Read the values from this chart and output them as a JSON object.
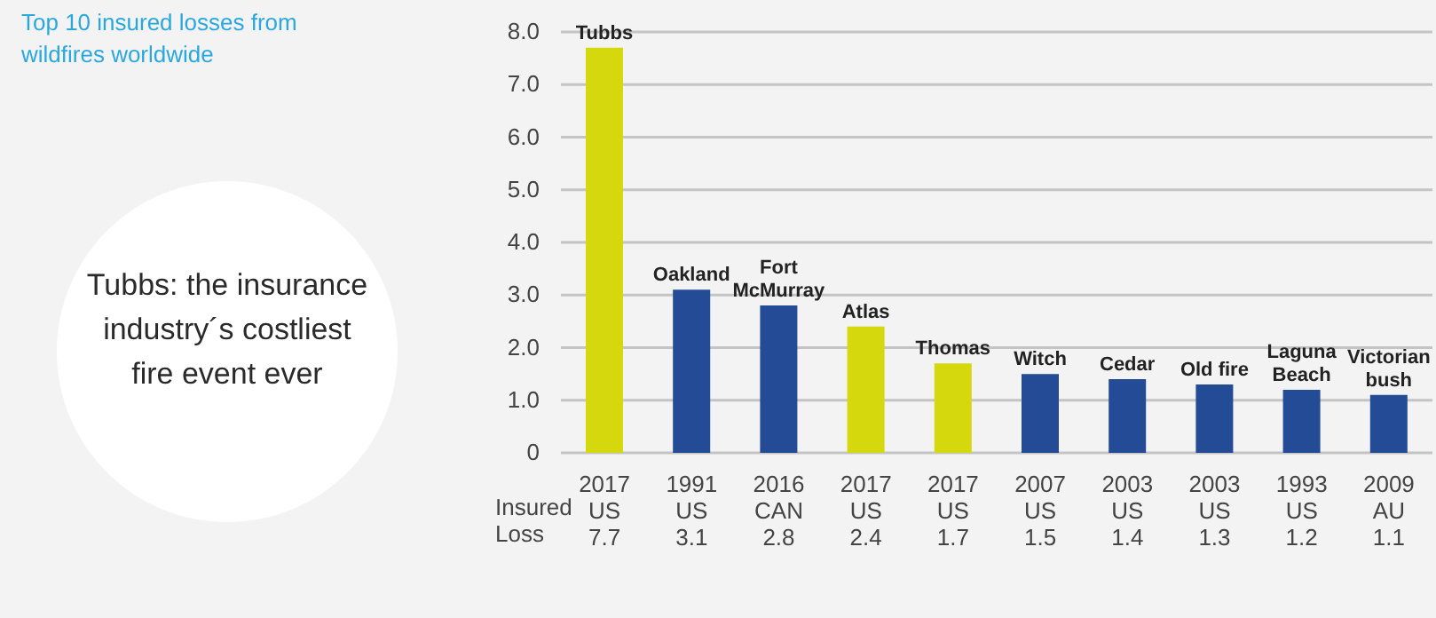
{
  "chart_data": {
    "type": "bar",
    "title": "Top 10 insured losses from wildfires worldwide",
    "categories": [
      "Tubbs",
      "Oakland",
      "Fort McMurray",
      "Atlas",
      "Thomas",
      "Witch",
      "Cedar",
      "Old fire",
      "Laguna Beach",
      "Victorian bush"
    ],
    "values": [
      7.7,
      3.1,
      2.8,
      2.4,
      1.7,
      1.5,
      1.4,
      1.3,
      1.2,
      1.1
    ],
    "colors": [
      "#d4d80c",
      "#234b96",
      "#234b96",
      "#d4d80c",
      "#d4d80c",
      "#234b96",
      "#234b96",
      "#234b96",
      "#234b96",
      "#234b96"
    ],
    "ylim": [
      0,
      8
    ],
    "yticks": [
      0,
      {
        "value": 1,
        "label": "1.0"
      },
      {
        "value": 2,
        "label": "2.0"
      },
      {
        "value": 3,
        "label": "3.0"
      },
      {
        "value": 4,
        "label": "4.0"
      },
      {
        "value": 5,
        "label": "5.0"
      },
      {
        "value": 6,
        "label": "6.0"
      },
      {
        "value": 7,
        "label": "7.0"
      },
      {
        "value": 8,
        "label": "8.0"
      }
    ],
    "grid": "y",
    "data_labels": true,
    "annotations": [
      "Tubbs: the insurance industry´s costliest fire event ever",
      "Insured Loss",
      "2017 US",
      "1991 US",
      "2016 CAN",
      "2017 US",
      "2017 US",
      "2007 US",
      "2003 US",
      "2003 US",
      "1993 US",
      "2009 AU"
    ]
  }
}
